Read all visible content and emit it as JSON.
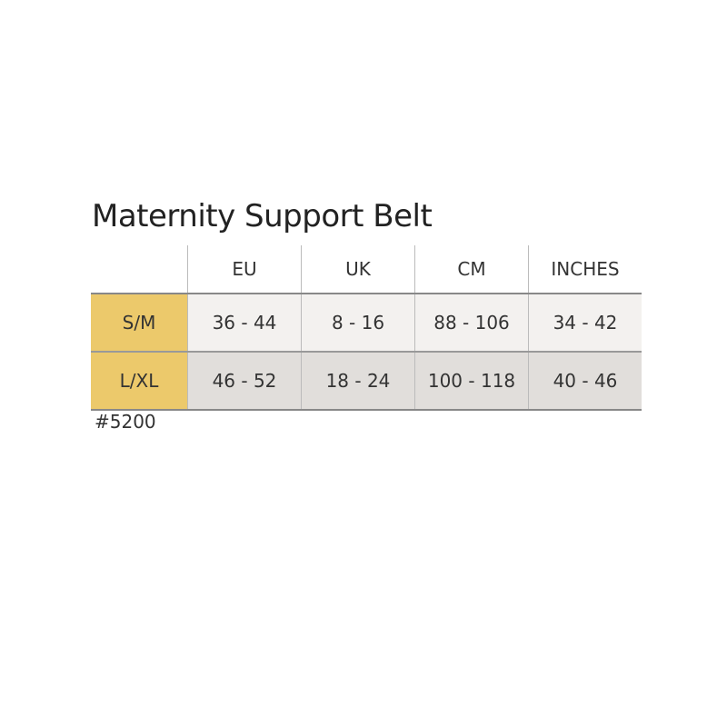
{
  "title": "Maternity Support Belt",
  "table": {
    "columns": [
      "EU",
      "UK",
      "CM",
      "INCHES"
    ],
    "rows": [
      [
        "S/M",
        "36 - 44",
        "8 - 16",
        "88 - 106",
        "34 - 42"
      ],
      [
        "L/XL",
        "46 - 52",
        "18 - 24",
        "100 - 118",
        "40 - 46"
      ]
    ]
  },
  "footnote": "#5200"
}
